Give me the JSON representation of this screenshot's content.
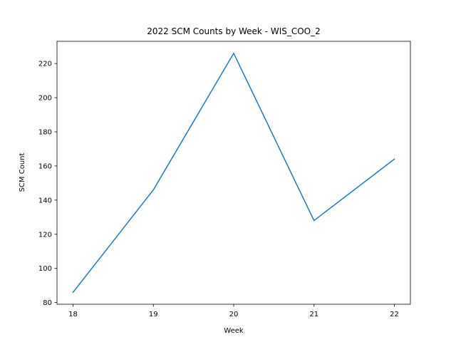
{
  "chart_data": {
    "type": "line",
    "title": "2022 SCM Counts by Week - WIS_COO_2",
    "xlabel": "Week",
    "ylabel": "SCM Count",
    "x": [
      18,
      19,
      20,
      21,
      22
    ],
    "series": [
      {
        "values": [
          86,
          146,
          226,
          128,
          164
        ],
        "color": "#1f77b4"
      }
    ],
    "xlim": [
      17.8,
      22.2
    ],
    "ylim": [
      79,
      233
    ],
    "xticks": [
      18,
      19,
      20,
      21,
      22
    ],
    "yticks": [
      80,
      100,
      120,
      140,
      160,
      180,
      200,
      220
    ],
    "grid": false,
    "legend": "none"
  }
}
